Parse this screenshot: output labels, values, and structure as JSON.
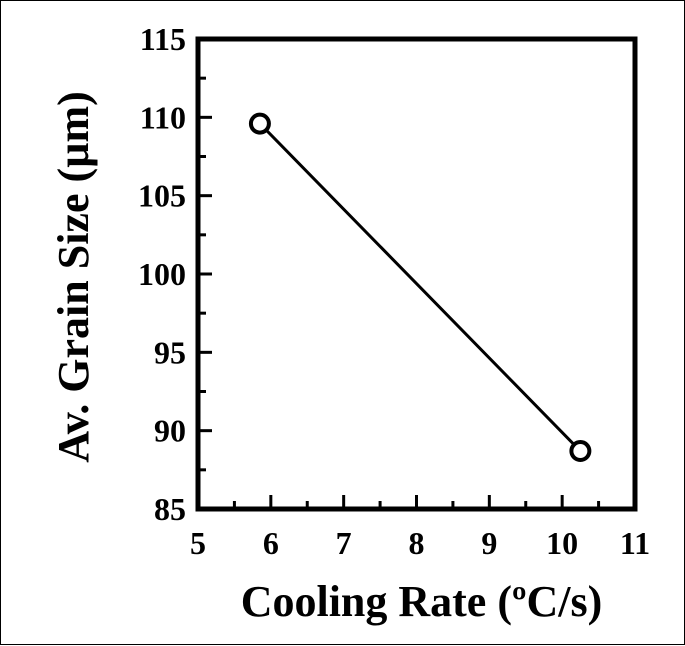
{
  "chart_data": {
    "type": "line",
    "title": "",
    "xlabel": "Cooling Rate (ºC/s)",
    "ylabel": "Av. Grain Size (µm)",
    "xlim": [
      5,
      11
    ],
    "ylim": [
      85,
      115
    ],
    "x_ticks": [
      "5",
      "6",
      "7",
      "8",
      "9",
      "10",
      "11"
    ],
    "y_ticks": [
      "85",
      "90",
      "95",
      "100",
      "105",
      "110",
      "115"
    ],
    "grid": false,
    "legend": "none",
    "series": [
      {
        "x": [
          5.85,
          10.25
        ],
        "y": [
          109.6,
          88.7
        ],
        "marker": "open-circle",
        "color": "#000000"
      }
    ]
  }
}
